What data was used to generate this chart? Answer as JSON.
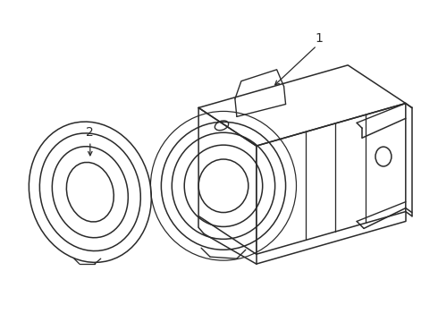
{
  "background_color": "#ffffff",
  "line_color": "#2a2a2a",
  "line_width": 1.1,
  "label1_text": "1",
  "label2_text": "2",
  "fig_width": 4.9,
  "fig_height": 3.6,
  "dpi": 100
}
